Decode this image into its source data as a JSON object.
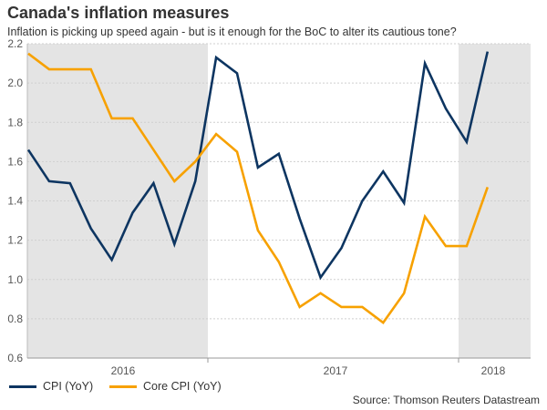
{
  "header": {
    "title": "Canada's inflation measures",
    "subtitle": "Inflation is picking up speed again - but is it enough for the BoC to alter its cautious tone?"
  },
  "chart_data": {
    "type": "line",
    "title": "Canada's inflation measures",
    "xlabel": "",
    "ylabel": "",
    "ylim": [
      0.6,
      2.2
    ],
    "yticks": [
      "0.6",
      "0.8",
      "1.0",
      "1.2",
      "1.4",
      "1.6",
      "1.8",
      "2.0",
      "2.2"
    ],
    "year_labels": [
      {
        "label": "2016",
        "shaded": true
      },
      {
        "label": "2017",
        "shaded": false
      },
      {
        "label": "2018",
        "shaded": true
      }
    ],
    "grid": true,
    "legend": "bottom-left",
    "series": [
      {
        "name": "CPI (YoY)",
        "color": "#0d3561",
        "values": [
          1.66,
          1.5,
          1.49,
          1.26,
          1.1,
          1.34,
          1.49,
          1.18,
          1.5,
          2.13,
          2.05,
          1.57,
          1.64,
          1.31,
          1.01,
          1.16,
          1.4,
          1.55,
          1.39,
          2.1,
          1.87,
          1.7,
          2.16
        ]
      },
      {
        "name": "Core CPI (YoY)",
        "color": "#f7a100",
        "values": [
          2.15,
          2.07,
          2.07,
          2.07,
          1.82,
          1.82,
          1.66,
          1.5,
          1.6,
          1.74,
          1.65,
          1.25,
          1.09,
          0.86,
          0.93,
          0.86,
          0.86,
          0.78,
          0.93,
          1.32,
          1.17,
          1.17,
          1.47
        ]
      }
    ]
  },
  "source": "Source: Thomson Reuters Datastream"
}
